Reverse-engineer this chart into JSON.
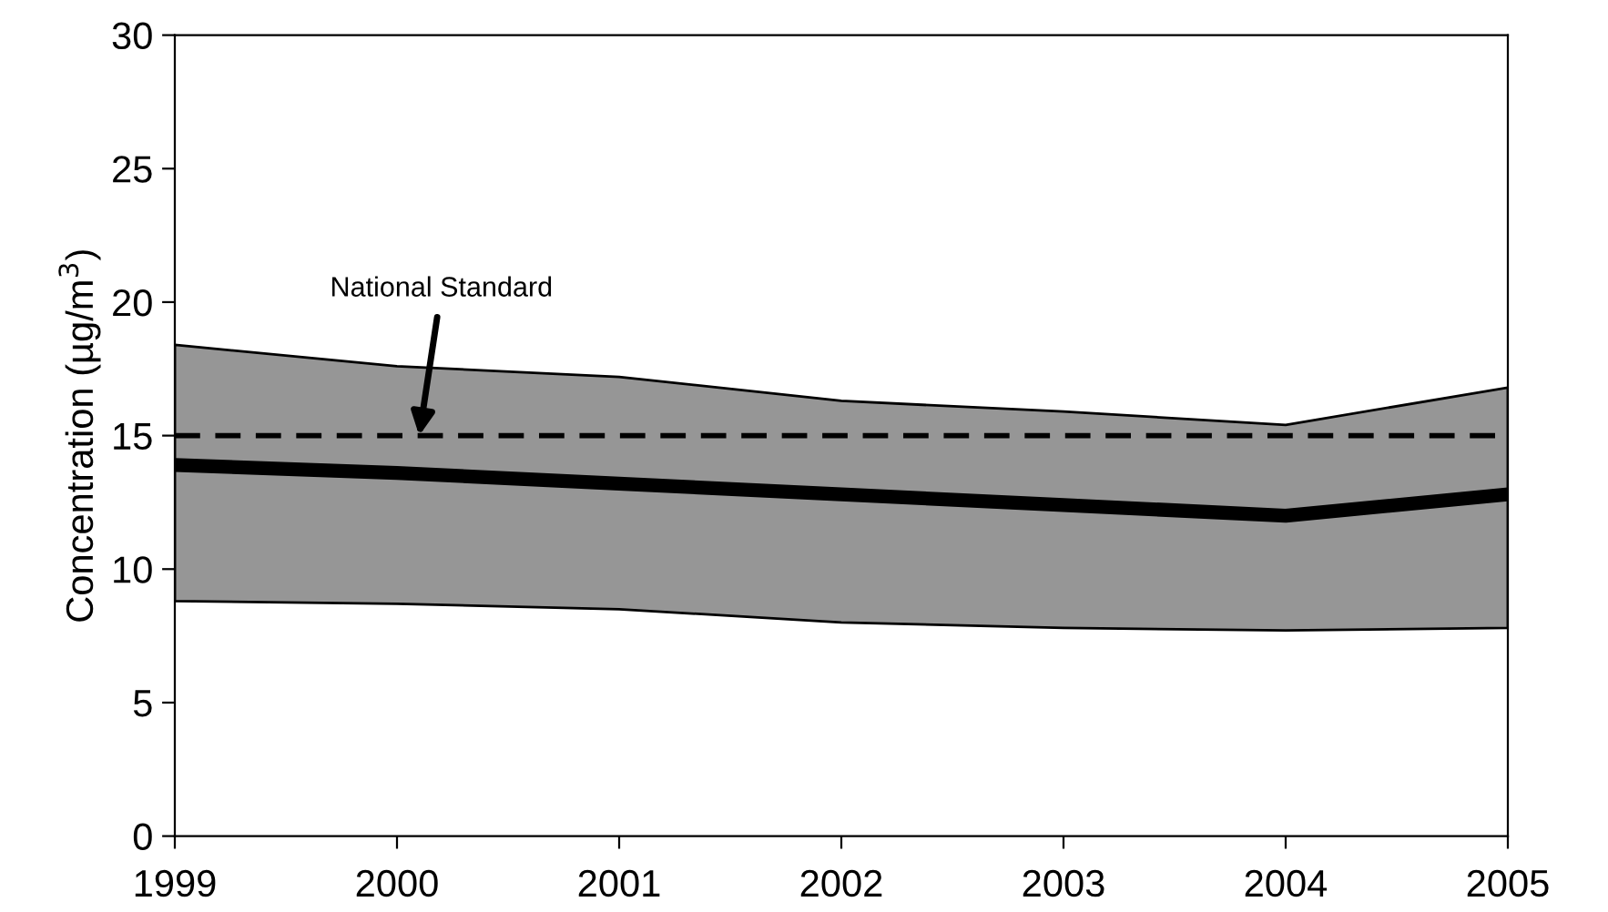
{
  "chart_data": {
    "type": "line",
    "ylabel": "Concentration (µg/m$^{3}$)",
    "x": [
      1999,
      2000,
      2001,
      2002,
      2003,
      2004,
      2005
    ],
    "series": [
      {
        "color": "#000000",
        "values": [
          13.9,
          13.6,
          13.2,
          12.8,
          12.4,
          12.0,
          12.8
        ],
        "lower": [
          8.8,
          8.7,
          8.5,
          8.0,
          7.8,
          7.7,
          7.8
        ],
        "upper": [
          18.4,
          17.6,
          17.2,
          16.3,
          15.9,
          15.4,
          16.8
        ]
      }
    ],
    "xlim": [
      1999,
      2005
    ],
    "xticks": [
      1999,
      2000,
      2001,
      2002,
      2003,
      2004,
      2005
    ],
    "ylim": [
      0,
      30
    ],
    "yticks": [
      0,
      5,
      10,
      15,
      20,
      25,
      30
    ],
    "ref_lines": [
      {
        "axis": "y",
        "value": 15,
        "color": "#000000",
        "line_style": "dashed"
      }
    ],
    "annotations": [
      {
        "text": "National Standard",
        "x": 2000.1,
        "y": 15
      }
    ],
    "grid": false,
    "legend": false
  }
}
